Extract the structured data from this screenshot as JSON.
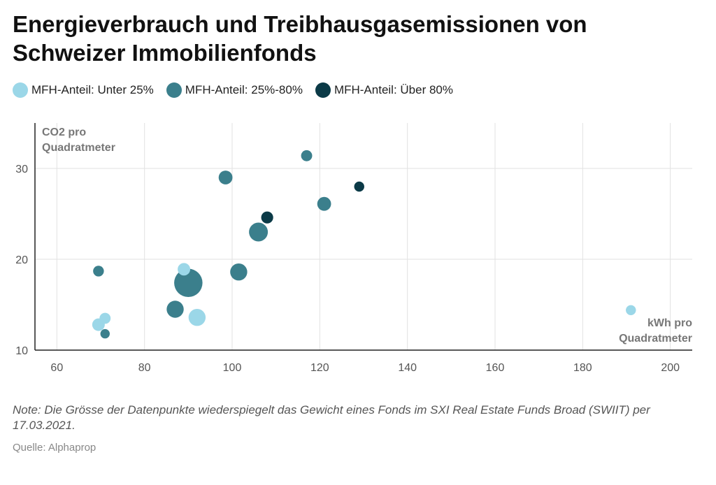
{
  "title": "Energieverbrauch und Treibhausgasemissionen von Schweizer Immobilienfonds",
  "legend": [
    {
      "label": "MFH-Anteil: Unter 25%",
      "color": "#9bd7e8"
    },
    {
      "label": "MFH-Anteil: 25%-80%",
      "color": "#3b7f8c"
    },
    {
      "label": "MFH-Anteil: Über 80%",
      "color": "#0b3a47"
    }
  ],
  "note": "Note: Die Grösse der Datenpunkte wiederspiegelt das Gewicht eines Fonds im SXI Real Estate Funds Broad (SWIIT) per 17.03.2021.",
  "source": "Quelle: Alphaprop",
  "chart_data": {
    "type": "scatter",
    "xlabel": "kWh pro Quadratmeter",
    "ylabel": "CO2 pro Quadratmeter",
    "xlim": [
      55,
      205
    ],
    "ylim": [
      10,
      35
    ],
    "xticks": [
      60,
      80,
      100,
      120,
      140,
      160,
      180,
      200
    ],
    "yticks": [
      10,
      20,
      30
    ],
    "grid": true,
    "legend_position": "top-left",
    "series": [
      {
        "name": "MFH-Anteil: Unter 25%",
        "color": "#9bd7e8",
        "points": [
          {
            "x": 69.5,
            "y": 12.8,
            "weight": 2
          },
          {
            "x": 71,
            "y": 13.5,
            "weight": 1.5
          },
          {
            "x": 89,
            "y": 18.9,
            "weight": 2
          },
          {
            "x": 92,
            "y": 13.6,
            "weight": 4
          },
          {
            "x": 191,
            "y": 14.4,
            "weight": 1.2
          }
        ]
      },
      {
        "name": "MFH-Anteil: 25%-80%",
        "color": "#3b7f8c",
        "points": [
          {
            "x": 69.5,
            "y": 18.7,
            "weight": 1.4
          },
          {
            "x": 71,
            "y": 11.8,
            "weight": 1
          },
          {
            "x": 87,
            "y": 14.5,
            "weight": 4
          },
          {
            "x": 90,
            "y": 17.4,
            "weight": 12
          },
          {
            "x": 98.5,
            "y": 29,
            "weight": 2.5
          },
          {
            "x": 101.5,
            "y": 18.6,
            "weight": 4
          },
          {
            "x": 106,
            "y": 23,
            "weight": 5
          },
          {
            "x": 117,
            "y": 31.4,
            "weight": 1.5
          },
          {
            "x": 121,
            "y": 26.1,
            "weight": 2.5
          }
        ]
      },
      {
        "name": "MFH-Anteil: Über 80%",
        "color": "#0b3a47",
        "points": [
          {
            "x": 108,
            "y": 24.6,
            "weight": 1.8
          },
          {
            "x": 129,
            "y": 28,
            "weight": 1.2
          }
        ]
      }
    ]
  }
}
